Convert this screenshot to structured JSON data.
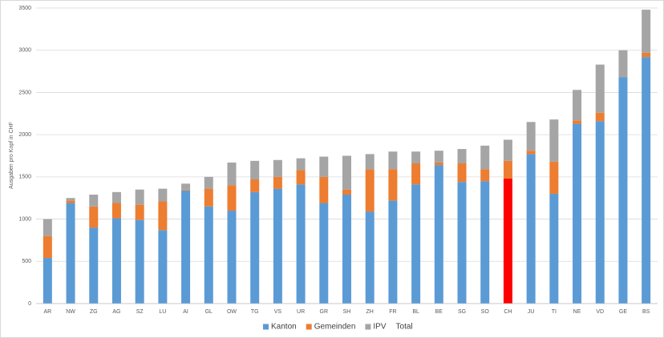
{
  "chart_data": {
    "type": "stacked_bar",
    "y_label": "Ausgaben pro Kopf in CHF",
    "categories": [
      "AR",
      "NW",
      "ZG",
      "AG",
      "SZ",
      "LU",
      "AI",
      "GL",
      "OW",
      "TG",
      "VS",
      "UR",
      "GR",
      "SH",
      "ZH",
      "FR",
      "BL",
      "BE",
      "SG",
      "SO",
      "CH",
      "JU",
      "TI",
      "NE",
      "VD",
      "GE",
      "BS"
    ],
    "series": [
      {
        "name": "Kanton",
        "color": "#5b9bd5",
        "values": [
          540,
          1190,
          900,
          1010,
          990,
          870,
          1340,
          1150,
          1100,
          1320,
          1360,
          1410,
          1190,
          1290,
          1090,
          1220,
          1410,
          1640,
          1440,
          1450,
          1480,
          1770,
          1300,
          2130,
          2160,
          2680,
          2920
        ]
      },
      {
        "name": "Gemeinden",
        "color": "#ed7d31",
        "values": [
          260,
          30,
          250,
          180,
          180,
          340,
          10,
          210,
          300,
          150,
          140,
          170,
          310,
          60,
          500,
          370,
          250,
          30,
          220,
          140,
          210,
          40,
          380,
          40,
          100,
          0,
          50
        ]
      },
      {
        "name": "IPV",
        "color": "#a5a5a5",
        "values": [
          200,
          30,
          140,
          130,
          180,
          150,
          70,
          140,
          270,
          220,
          200,
          140,
          240,
          400,
          180,
          210,
          140,
          140,
          170,
          280,
          250,
          340,
          500,
          360,
          570,
          320,
          510
        ]
      },
      {
        "name": "Total",
        "color": "none",
        "values": [
          1000,
          1250,
          1290,
          1320,
          1350,
          1360,
          1420,
          1500,
          1670,
          1690,
          1700,
          1720,
          1740,
          1750,
          1770,
          1800,
          1800,
          1810,
          1830,
          1870,
          1940,
          2150,
          2180,
          2530,
          2830,
          3000,
          3480
        ]
      }
    ],
    "highlight": {
      "category": "CH",
      "series": "Kanton",
      "color": "#ff0000"
    },
    "ylim": [
      0,
      3500
    ],
    "yticks": [
      0,
      500,
      1000,
      1500,
      2000,
      2500,
      3000,
      3500
    ],
    "grid": true,
    "legend": "bottom"
  }
}
